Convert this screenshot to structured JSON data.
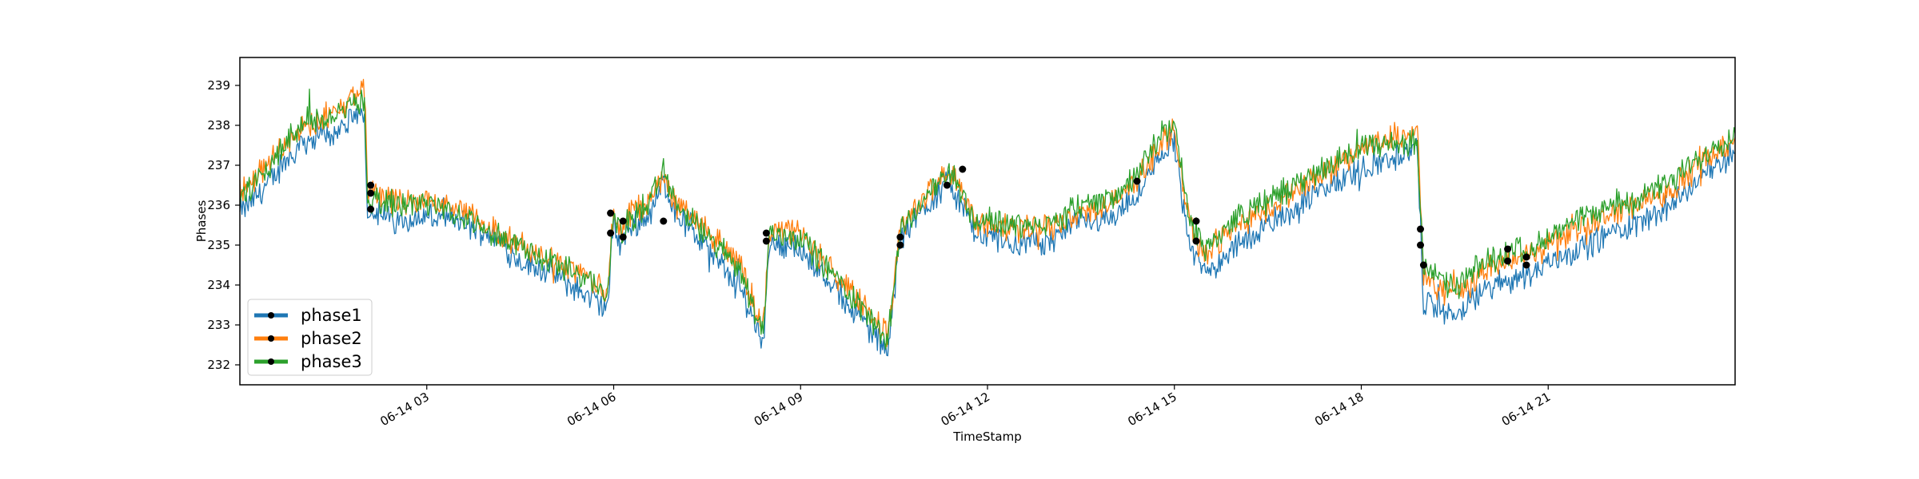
{
  "chart_data": {
    "type": "line",
    "title": "",
    "xlabel": "TimeStamp",
    "ylabel": "Phases",
    "xlim": [
      "2018-06-14 00:00",
      "2018-06-15 00:00"
    ],
    "ylim": [
      231.5,
      239.7
    ],
    "x_ticks": [
      "06-14 03",
      "06-14 06",
      "06-14 09",
      "06-14 12",
      "06-14 15",
      "06-14 18",
      "06-14 21"
    ],
    "y_ticks": [
      "232",
      "233",
      "234",
      "235",
      "236",
      "237",
      "238",
      "239"
    ],
    "legend_position": "lower-left",
    "grid": false,
    "x_hours": [
      0.0,
      0.5,
      1.0,
      1.5,
      2.0,
      2.05,
      2.5,
      3.0,
      3.5,
      4.0,
      4.5,
      5.0,
      5.5,
      5.9,
      6.0,
      6.1,
      6.3,
      6.6,
      6.8,
      7.0,
      7.5,
      8.0,
      8.4,
      8.5,
      9.0,
      9.5,
      10.0,
      10.4,
      10.6,
      11.0,
      11.4,
      11.8,
      12.0,
      12.5,
      13.0,
      13.5,
      14.0,
      14.4,
      14.8,
      15.0,
      15.25,
      15.5,
      16.0,
      16.5,
      17.0,
      17.5,
      18.0,
      18.5,
      18.9,
      19.0,
      19.5,
      20.0,
      20.5,
      20.9,
      21.0,
      21.5,
      22.0,
      22.5,
      23.0,
      23.5,
      24.0
    ],
    "series": [
      {
        "name": "phase1",
        "color": "#1f77b4",
        "values": [
          235.8,
          236.6,
          237.6,
          237.8,
          238.3,
          235.9,
          235.6,
          235.7,
          235.6,
          235.3,
          234.6,
          234.3,
          233.8,
          233.4,
          235.6,
          235.0,
          235.5,
          235.8,
          236.6,
          235.8,
          234.9,
          234.0,
          232.6,
          235.1,
          234.9,
          234.0,
          233.1,
          232.3,
          235.1,
          236.0,
          236.6,
          235.3,
          235.2,
          235.0,
          235.1,
          235.6,
          235.7,
          236.2,
          237.3,
          237.6,
          234.9,
          234.3,
          235.0,
          235.5,
          236.0,
          236.5,
          236.9,
          237.2,
          237.4,
          233.6,
          233.2,
          233.9,
          234.2,
          234.4,
          234.6,
          234.9,
          235.3,
          235.6,
          236.0,
          236.8,
          237.3
        ]
      },
      {
        "name": "phase2",
        "color": "#ff7f0e",
        "values": [
          236.3,
          237.2,
          238.0,
          238.3,
          238.9,
          236.4,
          236.1,
          236.1,
          235.9,
          235.5,
          235.0,
          234.7,
          234.3,
          233.8,
          235.9,
          235.4,
          235.8,
          236.2,
          236.8,
          236.0,
          235.4,
          234.6,
          232.9,
          235.4,
          235.3,
          234.4,
          233.5,
          232.7,
          235.4,
          236.3,
          236.9,
          235.6,
          235.5,
          235.4,
          235.4,
          235.8,
          236.0,
          236.6,
          237.6,
          237.9,
          235.4,
          234.8,
          235.5,
          235.9,
          236.4,
          236.9,
          237.4,
          237.7,
          237.8,
          234.2,
          233.7,
          234.4,
          234.7,
          234.9,
          235.1,
          235.4,
          235.8,
          236.0,
          236.4,
          237.2,
          237.7
        ]
      },
      {
        "name": "phase3",
        "color": "#2ca02c",
        "values": [
          236.2,
          237.0,
          238.1,
          238.2,
          238.7,
          236.2,
          236.0,
          236.1,
          235.8,
          235.4,
          234.9,
          234.6,
          234.2,
          233.7,
          235.8,
          235.3,
          235.7,
          236.1,
          236.9,
          236.0,
          235.2,
          234.5,
          232.8,
          235.3,
          235.2,
          234.3,
          233.4,
          232.6,
          235.3,
          236.2,
          236.9,
          235.6,
          235.6,
          235.5,
          235.5,
          236.0,
          236.2,
          236.7,
          237.8,
          238.0,
          235.6,
          234.9,
          235.7,
          236.1,
          236.6,
          237.0,
          237.5,
          237.5,
          237.6,
          234.4,
          233.9,
          234.6,
          234.9,
          235.0,
          235.2,
          235.6,
          236.0,
          236.2,
          236.6,
          237.3,
          237.8
        ]
      }
    ],
    "markers": [
      {
        "x": 2.1,
        "y": 236.5
      },
      {
        "x": 2.1,
        "y": 236.3
      },
      {
        "x": 2.1,
        "y": 235.9
      },
      {
        "x": 5.95,
        "y": 235.8
      },
      {
        "x": 5.95,
        "y": 235.3
      },
      {
        "x": 6.15,
        "y": 235.6
      },
      {
        "x": 6.15,
        "y": 235.2
      },
      {
        "x": 6.8,
        "y": 235.6
      },
      {
        "x": 8.45,
        "y": 235.3
      },
      {
        "x": 8.45,
        "y": 235.1
      },
      {
        "x": 10.6,
        "y": 235.2
      },
      {
        "x": 10.6,
        "y": 235.0
      },
      {
        "x": 11.35,
        "y": 236.5
      },
      {
        "x": 11.6,
        "y": 236.9
      },
      {
        "x": 14.4,
        "y": 236.6
      },
      {
        "x": 15.35,
        "y": 235.6
      },
      {
        "x": 15.35,
        "y": 235.1
      },
      {
        "x": 18.95,
        "y": 235.4
      },
      {
        "x": 18.95,
        "y": 235.0
      },
      {
        "x": 19.0,
        "y": 234.5
      },
      {
        "x": 20.35,
        "y": 234.9
      },
      {
        "x": 20.35,
        "y": 234.6
      },
      {
        "x": 20.65,
        "y": 234.7
      },
      {
        "x": 20.65,
        "y": 234.5
      }
    ]
  }
}
